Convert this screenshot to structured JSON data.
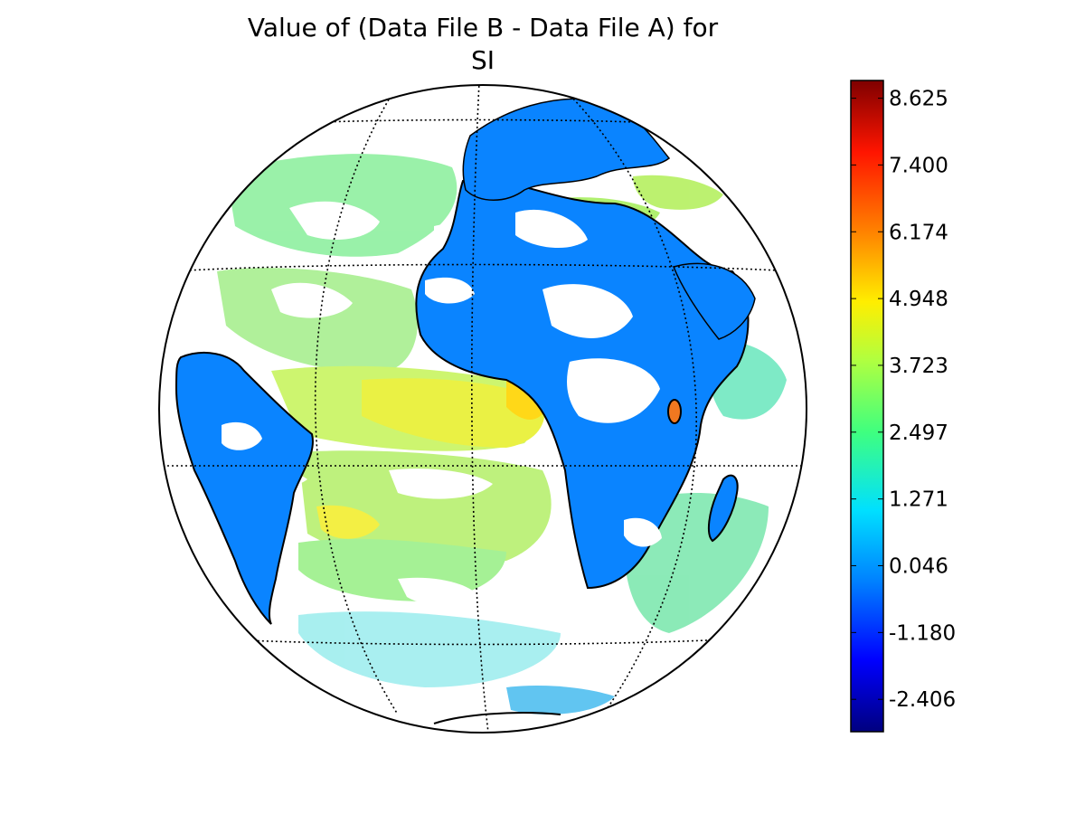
{
  "title_lines": [
    "Value of (Data File B - Data File A) for",
    "SI"
  ],
  "colorbar": {
    "min": -3.0,
    "max": 8.95,
    "tick_labels": [
      "8.625",
      "7.400",
      "6.174",
      "4.948",
      "3.723",
      "2.497",
      "1.271",
      "0.046",
      "-1.180",
      "-2.406"
    ],
    "tick_values": [
      8.625,
      7.4,
      6.174,
      4.948,
      3.723,
      2.497,
      1.271,
      0.046,
      -1.18,
      -2.406
    ],
    "colormap": "jet"
  },
  "map": {
    "projection": "orthographic",
    "graticule": "dotted",
    "land_color": "#0a84ff",
    "background": "#ffffff"
  }
}
